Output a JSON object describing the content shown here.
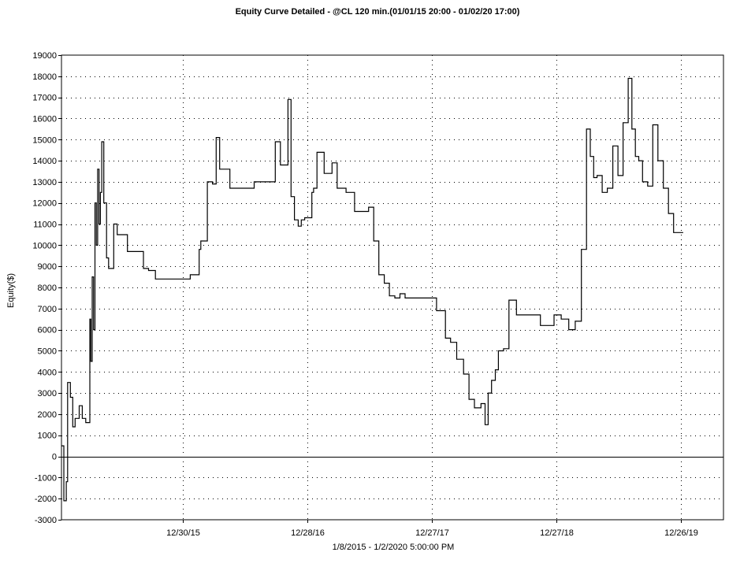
{
  "chart_data": {
    "type": "line",
    "title": "Equity Curve Detailed - @CL 120 min.(01/01/15 20:00 - 01/02/20 17:00)",
    "xlabel": "1/8/2015 - 1/2/2020 5:00:00 PM",
    "ylabel": "Equity($)",
    "ylim": [
      -3000,
      19000
    ],
    "yticks": [
      -3000,
      -2000,
      -1000,
      0,
      1000,
      2000,
      3000,
      4000,
      5000,
      6000,
      7000,
      8000,
      9000,
      10000,
      11000,
      12000,
      13000,
      14000,
      15000,
      16000,
      17000,
      18000,
      19000
    ],
    "xlim": [
      "2015-01-08",
      "2020-04-29"
    ],
    "xticks": [
      {
        "label": "12/30/15",
        "date": "2015-12-30"
      },
      {
        "label": "12/28/16",
        "date": "2016-12-28"
      },
      {
        "label": "12/27/17",
        "date": "2017-12-27"
      },
      {
        "label": "12/27/18",
        "date": "2018-12-27"
      },
      {
        "label": "12/26/19",
        "date": "2019-12-26"
      }
    ],
    "grid": true,
    "series": [
      {
        "x": [
          "2015-01-08",
          "2015-01-15",
          "2015-01-22",
          "2015-01-26",
          "2015-02-03",
          "2015-02-10",
          "2015-02-17",
          "2015-03-01",
          "2015-03-10",
          "2015-03-20",
          "2015-04-01",
          "2015-04-04",
          "2015-04-08",
          "2015-04-12",
          "2015-04-16",
          "2015-04-20",
          "2015-04-24",
          "2015-04-28",
          "2015-05-02",
          "2015-05-06",
          "2015-05-12",
          "2015-05-20",
          "2015-05-26",
          "2015-06-02",
          "2015-06-10",
          "2015-06-20",
          "2015-06-30",
          "2015-07-10",
          "2015-07-20",
          "2015-08-05",
          "2015-08-20",
          "2015-09-05",
          "2015-09-20",
          "2015-10-10",
          "2015-10-20",
          "2015-11-05",
          "2015-12-20",
          "2016-01-20",
          "2016-01-25",
          "2016-02-15",
          "2016-02-20",
          "2016-03-10",
          "2016-03-25",
          "2016-04-05",
          "2016-04-15",
          "2016-04-25",
          "2016-05-15",
          "2016-06-20",
          "2016-07-25",
          "2016-09-01",
          "2016-09-25",
          "2016-10-10",
          "2016-11-01",
          "2016-11-10",
          "2016-11-20",
          "2016-12-01",
          "2016-12-10",
          "2016-12-20",
          "2017-01-10",
          "2017-01-15",
          "2017-01-25",
          "2017-02-15",
          "2017-03-10",
          "2017-03-25",
          "2017-04-05",
          "2017-04-20",
          "2017-05-15",
          "2017-06-10",
          "2017-06-25",
          "2017-07-10",
          "2017-07-25",
          "2017-08-10",
          "2017-08-25",
          "2017-09-10",
          "2017-09-25",
          "2017-10-10",
          "2017-11-01",
          "2017-11-20",
          "2017-12-10",
          "2018-01-10",
          "2018-02-05",
          "2018-02-20",
          "2018-03-10",
          "2018-03-30",
          "2018-04-15",
          "2018-05-01",
          "2018-05-20",
          "2018-06-01",
          "2018-06-10",
          "2018-06-20",
          "2018-07-01",
          "2018-07-10",
          "2018-07-25",
          "2018-08-10",
          "2018-09-01",
          "2018-09-25",
          "2018-10-10",
          "2018-11-10",
          "2018-12-01",
          "2018-12-20",
          "2019-01-10",
          "2019-02-01",
          "2019-02-20",
          "2019-03-10",
          "2019-03-25",
          "2019-04-05",
          "2019-04-15",
          "2019-04-25",
          "2019-05-10",
          "2019-05-25",
          "2019-06-10",
          "2019-06-25",
          "2019-07-10",
          "2019-07-25",
          "2019-08-05",
          "2019-08-15",
          "2019-08-25",
          "2019-09-05",
          "2019-09-20",
          "2019-10-05",
          "2019-10-20",
          "2019-11-05",
          "2019-11-20",
          "2019-12-05",
          "2019-12-20",
          "2020-01-02"
        ],
        "values": [
          500,
          -2100,
          -1200,
          3500,
          2800,
          1400,
          1800,
          2400,
          1800,
          1600,
          6500,
          4500,
          8500,
          6000,
          12000,
          10000,
          13600,
          11000,
          12500,
          14900,
          12000,
          9400,
          8900,
          8900,
          11000,
          10500,
          10500,
          10500,
          9700,
          9700,
          9700,
          8900,
          8800,
          8400,
          8400,
          8400,
          8400,
          8600,
          8600,
          9800,
          10200,
          13000,
          12900,
          15100,
          13600,
          13600,
          12700,
          12700,
          13000,
          13000,
          14900,
          13800,
          16900,
          12300,
          11200,
          10900,
          11200,
          11300,
          12500,
          12700,
          14400,
          13400,
          13900,
          12700,
          12700,
          12500,
          11600,
          11600,
          11800,
          10200,
          8600,
          8200,
          7600,
          7500,
          7700,
          7500,
          7500,
          7500,
          7500,
          6900,
          5600,
          5400,
          4600,
          3900,
          2700,
          2300,
          2500,
          1500,
          3000,
          3600,
          4100,
          5000,
          5100,
          7400,
          6700,
          6700,
          6700,
          6200,
          6200,
          6700,
          6500,
          6000,
          6400,
          9800,
          15500,
          14200,
          13200,
          13300,
          12500,
          12700,
          14700,
          13300,
          15800,
          17900,
          15500,
          14200,
          14000,
          13000,
          12800,
          15700,
          14000,
          12700,
          11500,
          10600,
          10600,
          10600
        ]
      }
    ]
  }
}
